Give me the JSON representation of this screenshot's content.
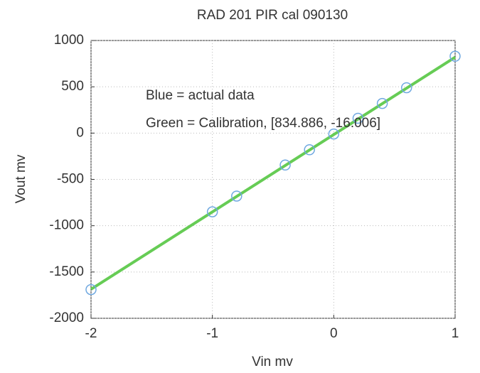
{
  "chart_data": {
    "type": "scatter",
    "title": "RAD 201 PIR cal 090130",
    "x_label": "Vin mv",
    "y_label": "Vout mv",
    "annotations": [
      "Blue = actual data",
      "Green = Calibration, [834.886, -16.006]"
    ],
    "series": [
      {
        "type": "line",
        "color": "#66cc55",
        "x": [
          -2,
          1
        ],
        "values": [
          -1686,
          819
        ]
      },
      {
        "type": "scatter",
        "color": "#6fa8e0",
        "x": [
          -2,
          -1,
          -0.8,
          -0.4,
          -0.2,
          0,
          0.2,
          0.4,
          0.6,
          1
        ],
        "values": [
          -1690,
          -850,
          -680,
          -345,
          -180,
          -10,
          160,
          320,
          490,
          830
        ]
      }
    ],
    "xlim": [
      -2,
      1
    ],
    "xticks": [
      -2,
      -1,
      0,
      1
    ],
    "ylim": [
      -2000,
      1000
    ],
    "yticks": [
      -2000,
      -1500,
      -1000,
      -500,
      0,
      500,
      1000
    ],
    "grid": true
  }
}
